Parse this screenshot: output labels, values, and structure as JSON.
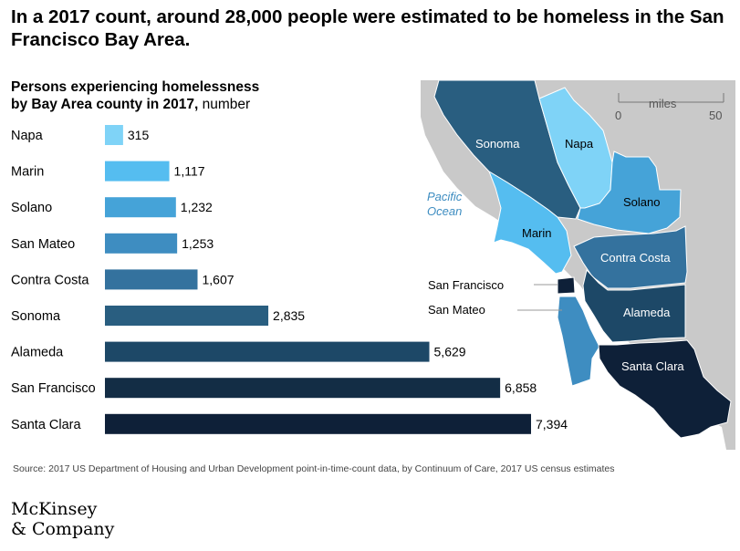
{
  "headline": "In a 2017 count, around 28,000 people were estimated to be homeless in the San Francisco Bay Area.",
  "subtitle": {
    "line1": "Persons experiencing homelessness",
    "line2": "by Bay Area county in 2017,",
    "unit": "number"
  },
  "chart_data": {
    "type": "bar",
    "orientation": "horizontal",
    "categories": [
      "Napa",
      "Marin",
      "Solano",
      "San Mateo",
      "Contra Costa",
      "Sonoma",
      "Alameda",
      "San Francisco",
      "Santa Clara"
    ],
    "values": [
      315,
      1117,
      1232,
      1253,
      1607,
      2835,
      5629,
      6858,
      7394
    ],
    "value_labels": [
      "315",
      "1,117",
      "1,232",
      "1,253",
      "1,607",
      "2,835",
      "5,629",
      "6,858",
      "7,394"
    ],
    "colors": [
      "#7fd3f7",
      "#55bdf0",
      "#45a3d8",
      "#3e8dc1",
      "#34729e",
      "#295e80",
      "#1d4867",
      "#132d45",
      "#0e2038"
    ],
    "xlim": [
      0,
      7394
    ],
    "title": "",
    "xlabel": "",
    "ylabel": ""
  },
  "map": {
    "scale_label": "miles",
    "scale_start": "0",
    "scale_end": "50",
    "ocean_label_1": "Pacific",
    "ocean_label_2": "Ocean",
    "land_color": "#c9c9c9",
    "county_labels": {
      "sonoma": "Sonoma",
      "napa": "Napa",
      "solano": "Solano",
      "marin": "Marin",
      "contra_costa": "Contra Costa",
      "alameda": "Alameda",
      "santa_clara": "Santa Clara"
    },
    "callouts": {
      "san_francisco": "San Francisco",
      "san_mateo": "San Mateo"
    }
  },
  "source": "Source: 2017 US Department of Housing and Urban Development point-in-time-count data, by Continuum of Care, 2017 US census estimates",
  "logo": {
    "line1": "McKinsey",
    "line2": "& Company"
  }
}
